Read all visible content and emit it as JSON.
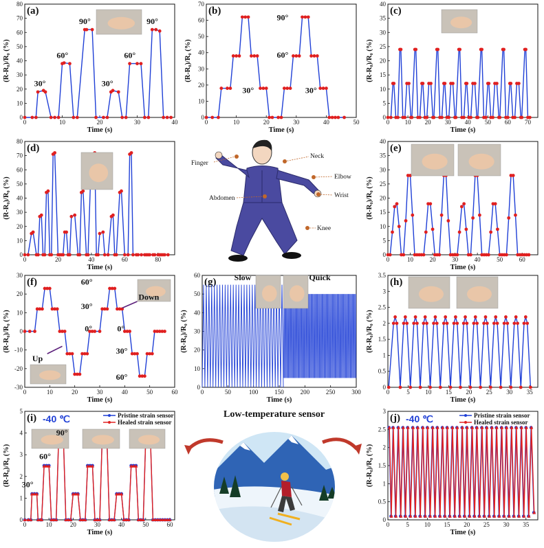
{
  "colors": {
    "line": "#1f3fd6",
    "marker": "#e02020",
    "healed": "#e02020",
    "pristine": "#1f3fd6",
    "jacket": "#4a4aa0",
    "arrow": "#c0392b"
  },
  "common": {
    "xlabel": "Time (s)",
    "ylabel": "(R-R₀)/R₀ (%)"
  },
  "center": {
    "title": "Low-temperature sensor",
    "labels": {
      "finger": "Finger",
      "neck": "Neck",
      "elbow": "Elbow",
      "wrist": "Wrist",
      "abdomen": "Abdomen",
      "knee": "Knee"
    }
  },
  "chart_data": [
    {
      "id": "a",
      "label": "(a)",
      "type": "line",
      "xlim": [
        0,
        40
      ],
      "ylim": [
        0,
        80
      ],
      "xticks": [
        0,
        10,
        20,
        30,
        40
      ],
      "yticks": [
        0,
        10,
        20,
        30,
        40,
        50,
        60,
        70,
        80
      ],
      "x": [
        0,
        2,
        3,
        3.5,
        5,
        5.5,
        7,
        8,
        9,
        10,
        10.5,
        12,
        13,
        14,
        16,
        16.5,
        18,
        19,
        21,
        22,
        23,
        23.5,
        25,
        26,
        27,
        28,
        30,
        31,
        32,
        33,
        34,
        35,
        36,
        37,
        38,
        39
      ],
      "y": [
        0,
        0,
        0,
        18,
        19,
        18,
        0,
        0,
        0,
        38,
        38.5,
        38,
        0,
        0,
        62,
        62,
        62,
        0,
        0,
        0,
        18,
        19,
        18,
        0,
        0,
        38,
        38,
        38,
        0,
        0,
        62,
        62,
        61,
        0,
        0,
        0
      ],
      "annotations": [
        "30°",
        "60°",
        "90°",
        "30°",
        "60°",
        "90°"
      ]
    },
    {
      "id": "b",
      "label": "(b)",
      "type": "line",
      "xlim": [
        0,
        50
      ],
      "ylim": [
        0,
        70
      ],
      "xticks": [
        0,
        10,
        20,
        30,
        40,
        50
      ],
      "yticks": [
        0,
        10,
        20,
        30,
        40,
        50,
        60,
        70
      ],
      "x": [
        0,
        2,
        4,
        5,
        7,
        8,
        9,
        10,
        11,
        12,
        13,
        14,
        15,
        16,
        17,
        18,
        19,
        20,
        21,
        22,
        24,
        25,
        26,
        27,
        28,
        29,
        30,
        31,
        32,
        33,
        34,
        35,
        36,
        37,
        38,
        39,
        40,
        41,
        42,
        43,
        44,
        46
      ],
      "y": [
        0,
        0,
        0,
        18,
        18,
        18,
        38,
        38,
        38,
        62,
        62,
        62,
        38,
        38,
        38,
        18,
        18,
        18,
        0,
        0,
        0,
        0,
        18,
        18,
        18,
        38,
        38,
        38,
        62,
        62,
        62,
        38,
        38,
        38,
        18,
        18,
        18,
        0,
        0,
        0,
        0,
        0
      ],
      "annotations": [
        "90°",
        "60°",
        "30°",
        "30°"
      ]
    },
    {
      "id": "c",
      "label": "(c)",
      "type": "line",
      "xlim": [
        0,
        75
      ],
      "ylim": [
        0,
        40
      ],
      "xticks": [
        0,
        10,
        20,
        30,
        40,
        50,
        60,
        70
      ],
      "yticks": [
        0,
        5,
        10,
        15,
        20,
        25,
        30,
        35,
        40
      ],
      "x": [
        0,
        1.5,
        2.5,
        3,
        4,
        5,
        6,
        6.5,
        7.5,
        8.5,
        9.5,
        10.5,
        11.5,
        12,
        13.5,
        14,
        15,
        16,
        17,
        17.5,
        18.5,
        19.5,
        20.5,
        21.5,
        22.5,
        23,
        24.5,
        25,
        26,
        27,
        28,
        28.5,
        29.5,
        30.5,
        31.5,
        32.5,
        33.5,
        34,
        35.5,
        36,
        37,
        38,
        39,
        39.5,
        40.5,
        41.5,
        42.5,
        43.5,
        44.5,
        45,
        46.5,
        47,
        48,
        49,
        50,
        50.5,
        51.5,
        52.5,
        53.5,
        54.5,
        55.5,
        56,
        57.5,
        58,
        59,
        60,
        61,
        61.5,
        62.5,
        63.5,
        64.5,
        65.5,
        66.5,
        67,
        68.5,
        69,
        70,
        71
      ],
      "y": [
        0,
        0,
        12,
        12,
        0,
        0,
        24,
        24,
        0,
        0,
        12,
        12,
        0,
        0,
        24,
        24,
        0,
        0,
        12,
        12,
        0,
        0,
        12,
        12,
        0,
        0,
        24,
        24,
        0,
        0,
        12,
        12,
        0,
        0,
        12,
        12,
        0,
        0,
        24,
        24,
        0,
        0,
        12,
        12,
        0,
        0,
        12,
        12,
        0,
        0,
        24,
        24,
        0,
        0,
        12,
        12,
        0,
        0,
        12,
        12,
        0,
        0,
        24,
        24,
        0,
        0,
        12,
        12,
        0,
        0,
        12,
        12,
        0,
        0,
        24,
        24,
        0,
        0
      ]
    },
    {
      "id": "d",
      "label": "(d)",
      "type": "line",
      "xlim": [
        0,
        90
      ],
      "ylim": [
        0,
        80
      ],
      "xticks": [
        0,
        20,
        40,
        60,
        80
      ],
      "yticks": [
        0,
        10,
        20,
        30,
        40,
        50,
        60,
        70,
        80
      ],
      "x": [
        0,
        2,
        4,
        5,
        7,
        8,
        9,
        10,
        11,
        12,
        13,
        14,
        15,
        16,
        17,
        18,
        20,
        21,
        22,
        23,
        24,
        25,
        26,
        27,
        28,
        30,
        32,
        33,
        34,
        35,
        37,
        38,
        40,
        42,
        43,
        44,
        45,
        47,
        48,
        50,
        52,
        53,
        54,
        55,
        57,
        58,
        60,
        62,
        63,
        64,
        65,
        67,
        68,
        70,
        72,
        73,
        74,
        75,
        77,
        78,
        80,
        81,
        82,
        83,
        84,
        86
      ],
      "y": [
        0,
        0,
        15,
        16,
        0,
        0,
        27,
        28,
        0,
        0,
        44,
        45,
        0,
        0,
        71,
        72,
        0,
        0,
        0,
        0,
        16,
        16,
        0,
        0,
        27,
        28,
        0,
        0,
        44,
        45,
        0,
        0,
        71,
        72,
        0,
        0,
        15,
        16,
        0,
        0,
        27,
        28,
        0,
        0,
        44,
        45,
        0,
        0,
        71,
        72,
        0,
        0,
        0,
        0,
        0,
        0,
        0,
        0,
        0,
        0,
        0,
        0,
        0,
        0,
        0,
        0
      ]
    },
    {
      "id": "e",
      "label": "(e)",
      "type": "line",
      "xlim": [
        0,
        67
      ],
      "ylim": [
        0,
        40
      ],
      "xticks": [
        0,
        10,
        20,
        30,
        40,
        50,
        60
      ],
      "yticks": [
        0,
        5,
        10,
        15,
        20,
        25,
        30,
        35,
        40
      ],
      "x": [
        0,
        1,
        2,
        3,
        4,
        5,
        6,
        7,
        8,
        9,
        10,
        11,
        12,
        13,
        14,
        15,
        16,
        17,
        18,
        19,
        20,
        21,
        22,
        23,
        24,
        25,
        26,
        27,
        28,
        29,
        30,
        31,
        32,
        33,
        34,
        35,
        36,
        37,
        38,
        39,
        40,
        41,
        42,
        43,
        44,
        45,
        46,
        47,
        48,
        49,
        50,
        51,
        52,
        53,
        54,
        55,
        56,
        57,
        58,
        59,
        60,
        61,
        62,
        63
      ],
      "y": [
        0,
        0,
        8,
        17,
        18,
        10,
        0,
        0,
        12,
        28,
        28,
        14,
        0,
        0,
        0,
        0,
        0,
        8,
        18,
        18,
        9,
        0,
        0,
        0,
        14,
        28,
        28,
        12,
        0,
        0,
        0,
        0,
        8,
        17,
        18,
        9,
        0,
        0,
        13,
        28,
        28,
        14,
        0,
        0,
        0,
        0,
        8,
        18,
        18,
        9,
        0,
        0,
        0,
        0,
        13,
        28,
        28,
        14,
        0,
        0,
        0,
        0,
        0,
        0
      ]
    },
    {
      "id": "f",
      "label": "(f)",
      "type": "line",
      "xlim": [
        0,
        60
      ],
      "ylim": [
        -30,
        30
      ],
      "xticks": [
        0,
        10,
        20,
        30,
        40,
        50,
        60
      ],
      "yticks": [
        -30,
        -20,
        -10,
        0,
        10,
        20,
        30
      ],
      "x": [
        0,
        2,
        4,
        5,
        6,
        7,
        8,
        9,
        10,
        11,
        12,
        13,
        14,
        15,
        16,
        17,
        18,
        19,
        20,
        21,
        22,
        23,
        24,
        25,
        26,
        27,
        28,
        30,
        31,
        32,
        33,
        34,
        35,
        36,
        37,
        38,
        39,
        40,
        41,
        42,
        43,
        44,
        45,
        46,
        47,
        48,
        49,
        50,
        51,
        52,
        53,
        54,
        55,
        56
      ],
      "y": [
        0,
        0,
        0,
        12,
        12,
        12,
        23,
        23,
        23,
        12,
        12,
        12,
        0,
        0,
        0,
        -12,
        -12,
        -12,
        -23,
        -23,
        -23,
        -12,
        -12,
        -12,
        0,
        0,
        0,
        0,
        12,
        12,
        12,
        23,
        23,
        23,
        12,
        12,
        12,
        0,
        0,
        0,
        -12,
        -12,
        -12,
        -24,
        -24,
        -24,
        -12,
        -12,
        -12,
        0,
        0,
        0,
        0,
        0
      ],
      "annotations": [
        "60°",
        "30°",
        "0°",
        "0°",
        "30°",
        "60°",
        "Down",
        "Up"
      ]
    },
    {
      "id": "g",
      "label": "(g)",
      "type": "line",
      "xlim": [
        0,
        300
      ],
      "ylim": [
        0,
        60
      ],
      "xticks": [
        0,
        50,
        100,
        150,
        200,
        250,
        300
      ],
      "yticks": [
        0,
        10,
        20,
        30,
        40,
        50,
        60
      ],
      "segments": [
        {
          "name": "Slow",
          "x": [
            0,
            158
          ],
          "min": 0,
          "max": 55,
          "cycles": 30
        },
        {
          "name": "Quick",
          "x": [
            158,
            300
          ],
          "min": 5,
          "max": 50,
          "cycles": 120
        }
      ]
    },
    {
      "id": "h",
      "label": "(h)",
      "type": "line",
      "xlim": [
        0,
        37
      ],
      "ylim": [
        0,
        3.5
      ],
      "xticks": [
        0,
        5,
        10,
        15,
        20,
        25,
        30,
        35
      ],
      "yticks": [
        0,
        0.5,
        1.0,
        1.5,
        2.0,
        2.5,
        3.0,
        3.5
      ],
      "peaks": [
        1.8,
        4.3,
        6.8,
        9.2,
        11.7,
        14.2,
        16.7,
        19.1,
        21.6,
        24.1,
        26.6,
        29.1,
        31.6,
        34.0
      ],
      "peak_value": 2.2
    },
    {
      "id": "i",
      "label": "(i)",
      "type": "line",
      "xlim": [
        0,
        62
      ],
      "ylim": [
        0,
        5
      ],
      "xticks": [
        0,
        10,
        20,
        30,
        40,
        50,
        60
      ],
      "yticks": [
        0,
        1,
        2,
        3,
        4,
        5
      ],
      "x": [
        0,
        1.5,
        2.5,
        3,
        4,
        5,
        5.5,
        6.5,
        7,
        8,
        9,
        10,
        11,
        12,
        13,
        14,
        15,
        16,
        17,
        18,
        19,
        20,
        21,
        22,
        23,
        24,
        25,
        26,
        27,
        28,
        29,
        30,
        31,
        32,
        33,
        34,
        35,
        36,
        37,
        38,
        39,
        40,
        41,
        42,
        43,
        44,
        45,
        46,
        47,
        48,
        49,
        50,
        51,
        52,
        53,
        54,
        55,
        56,
        57,
        58,
        59,
        60
      ],
      "y": [
        0,
        0,
        0,
        1.2,
        1.2,
        1.2,
        0,
        0,
        0,
        2.5,
        2.5,
        2.5,
        0,
        0,
        0,
        3.7,
        3.7,
        3.7,
        0,
        0,
        0,
        1.2,
        1.2,
        1.2,
        0,
        0,
        0,
        2.5,
        2.5,
        2.5,
        0,
        0,
        0,
        3.7,
        3.7,
        3.7,
        0,
        0,
        0,
        1.2,
        1.2,
        1.2,
        0,
        0,
        0,
        2.5,
        2.5,
        2.5,
        0,
        0,
        0,
        3.7,
        3.7,
        3.7,
        0,
        0,
        0,
        0,
        0,
        0,
        0,
        0
      ],
      "temp": "-40 ℃",
      "series": [
        {
          "name": "Pristine strain sensor"
        },
        {
          "name": "Healed strain sensor"
        }
      ],
      "annotations": [
        "30°",
        "60°",
        "90°",
        "30°",
        "60°",
        "90°"
      ]
    },
    {
      "id": "j",
      "label": "(j)",
      "type": "line",
      "xlim": [
        0,
        38
      ],
      "ylim": [
        0,
        3.0
      ],
      "xticks": [
        0,
        5,
        10,
        15,
        20,
        25,
        30,
        35
      ],
      "yticks": [
        0,
        0.5,
        1.0,
        1.5,
        2.0,
        2.5,
        3.0
      ],
      "peaks": [
        0.3,
        1.3,
        2.6,
        3.8,
        5.0,
        6.3,
        7.5,
        8.8,
        10.0,
        11.3,
        12.5,
        13.8,
        15.0,
        16.3,
        17.5,
        18.8,
        20.0,
        21.3,
        22.5,
        23.8,
        25.0,
        26.3,
        27.5,
        28.8,
        30.0,
        31.3,
        32.5,
        33.8,
        35.0,
        36.3
      ],
      "peak_value": 2.55,
      "temp": "-40 ℃",
      "series": [
        {
          "name": "Pristine strain sensor"
        },
        {
          "name": "Healed strain sensor"
        }
      ]
    }
  ]
}
